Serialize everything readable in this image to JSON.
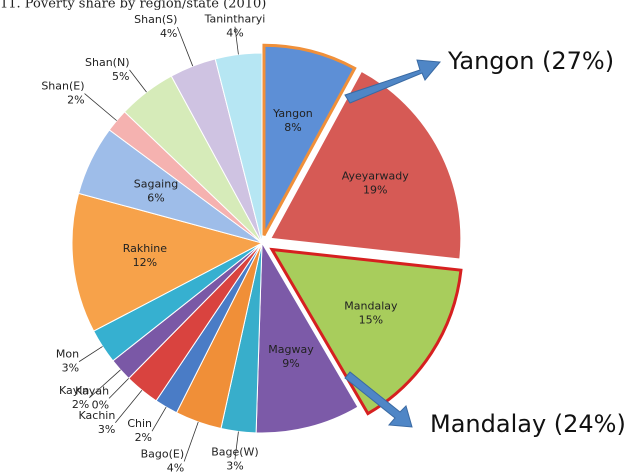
{
  "chart_data": {
    "type": "pie",
    "title": "11. Poverty share by region/state (2010)",
    "categories": [
      "Yangon",
      "Ayeyarwady",
      "Mandalay",
      "Magway",
      "Bage(W)",
      "Bago(E)",
      "Chin",
      "Kachin",
      "Kayah",
      "Kayin",
      "Mon",
      "Rakhine",
      "Sagaing",
      "Shan(E)",
      "Shan(N)",
      "Shan(S)",
      "Tanintharyi"
    ],
    "values": [
      8,
      19,
      15,
      9,
      3,
      4,
      2,
      3,
      0,
      2,
      3,
      12,
      6,
      2,
      5,
      4,
      4
    ],
    "value_labels": [
      "8%",
      "19%",
      "15%",
      "9%",
      "3%",
      "4%",
      "2%",
      "3%",
      "0%",
      "2%",
      "3%",
      "12%",
      "6%",
      "2%",
      "5%",
      "4%",
      "4%"
    ],
    "colors": [
      "#5d8fd6",
      "#d65a55",
      "#a8cd5c",
      "#7c5aa8",
      "#38aecb",
      "#f08f38",
      "#4a7cc6",
      "#d9433f",
      "#8fbf4a",
      "#7a58a6",
      "#36b0d0",
      "#f7a24a",
      "#9ebde9",
      "#f5b2b0",
      "#d6ebb9",
      "#cfc3e2",
      "#b6e6f3"
    ],
    "annotations": [
      "Yangon (27%)",
      "Mandalay (24%)"
    ]
  }
}
